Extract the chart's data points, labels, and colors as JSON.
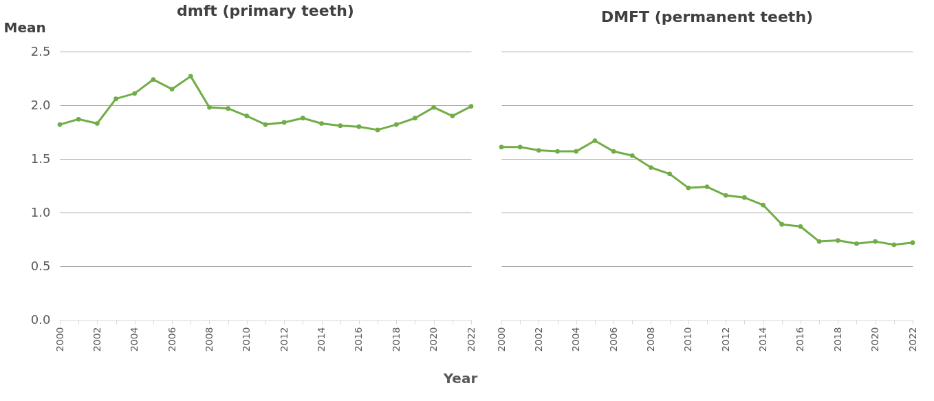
{
  "chart_data": [
    {
      "type": "line",
      "title": "dmft (primary teeth)",
      "ylabel": "Mean",
      "xlabel": "Year",
      "x": [
        2000,
        2001,
        2002,
        2003,
        2004,
        2005,
        2006,
        2007,
        2008,
        2009,
        2010,
        2011,
        2012,
        2013,
        2014,
        2015,
        2016,
        2017,
        2018,
        2019,
        2020,
        2021,
        2022
      ],
      "series": [
        {
          "color": "#70ad47",
          "values": [
            1.82,
            1.87,
            1.83,
            2.06,
            2.11,
            2.24,
            2.15,
            2.27,
            1.98,
            1.97,
            1.9,
            1.82,
            1.84,
            1.88,
            1.83,
            1.81,
            1.8,
            1.77,
            1.82,
            1.88,
            1.98,
            1.9,
            1.99
          ]
        }
      ],
      "xlim": [
        2000,
        2022
      ],
      "xticks": [
        2000,
        {
          "value": 2001,
          "label": null
        },
        2002,
        {
          "value": 2003,
          "label": null
        },
        2004,
        {
          "value": 2005,
          "label": null
        },
        2006,
        {
          "value": 2007,
          "label": null
        },
        2008,
        {
          "value": 2009,
          "label": null
        },
        2010,
        {
          "value": 2011,
          "label": null
        },
        2012,
        {
          "value": 2013,
          "label": null
        },
        2014,
        {
          "value": 2015,
          "label": null
        },
        2016,
        {
          "value": 2017,
          "label": null
        },
        2018,
        {
          "value": 2019,
          "label": null
        },
        2020,
        {
          "value": 2021,
          "label": null
        },
        2022
      ],
      "ylim": [
        0,
        2.5
      ],
      "yticks": [
        {
          "value": 0,
          "label": "0.0"
        },
        0.5,
        {
          "value": 1,
          "label": "1.0"
        },
        1.5,
        {
          "value": 2,
          "label": "2.0"
        },
        2.5
      ],
      "grid": "y",
      "marker": "circle",
      "line_style": "solid"
    },
    {
      "type": "line",
      "title": "DMFT (permanent teeth)",
      "x": [
        2000,
        2001,
        2002,
        2003,
        2004,
        2005,
        2006,
        2007,
        2008,
        2009,
        2010,
        2011,
        2012,
        2013,
        2014,
        2015,
        2016,
        2017,
        2018,
        2019,
        2020,
        2021,
        2022
      ],
      "series": [
        {
          "color": "#70ad47",
          "values": [
            1.61,
            1.61,
            1.58,
            1.57,
            1.57,
            1.67,
            1.57,
            1.53,
            1.42,
            1.36,
            1.23,
            1.24,
            1.16,
            1.14,
            1.07,
            0.89,
            0.87,
            0.73,
            0.74,
            0.71,
            0.73,
            0.7,
            0.72
          ]
        }
      ],
      "xlim": [
        2000,
        2022
      ],
      "xticks": [
        2000,
        {
          "value": 2001,
          "label": null
        },
        2002,
        {
          "value": 2003,
          "label": null
        },
        2004,
        {
          "value": 2005,
          "label": null
        },
        2006,
        {
          "value": 2007,
          "label": null
        },
        2008,
        {
          "value": 2009,
          "label": null
        },
        2010,
        {
          "value": 2011,
          "label": null
        },
        2012,
        {
          "value": 2013,
          "label": null
        },
        2014,
        {
          "value": 2015,
          "label": null
        },
        2016,
        {
          "value": 2017,
          "label": null
        },
        2018,
        {
          "value": 2019,
          "label": null
        },
        2020,
        {
          "value": 2021,
          "label": null
        },
        2022
      ],
      "ylim": [
        0,
        2.5
      ],
      "yticks": [
        {
          "value": 0,
          "label": null
        },
        {
          "value": 0.5,
          "label": null
        },
        {
          "value": 1,
          "label": null
        },
        {
          "value": 1.5,
          "label": null
        },
        {
          "value": 2,
          "label": null
        },
        {
          "value": 2.5,
          "label": null
        }
      ],
      "tick_labels": "x",
      "grid": "y",
      "marker": "circle",
      "line_style": "solid"
    }
  ]
}
